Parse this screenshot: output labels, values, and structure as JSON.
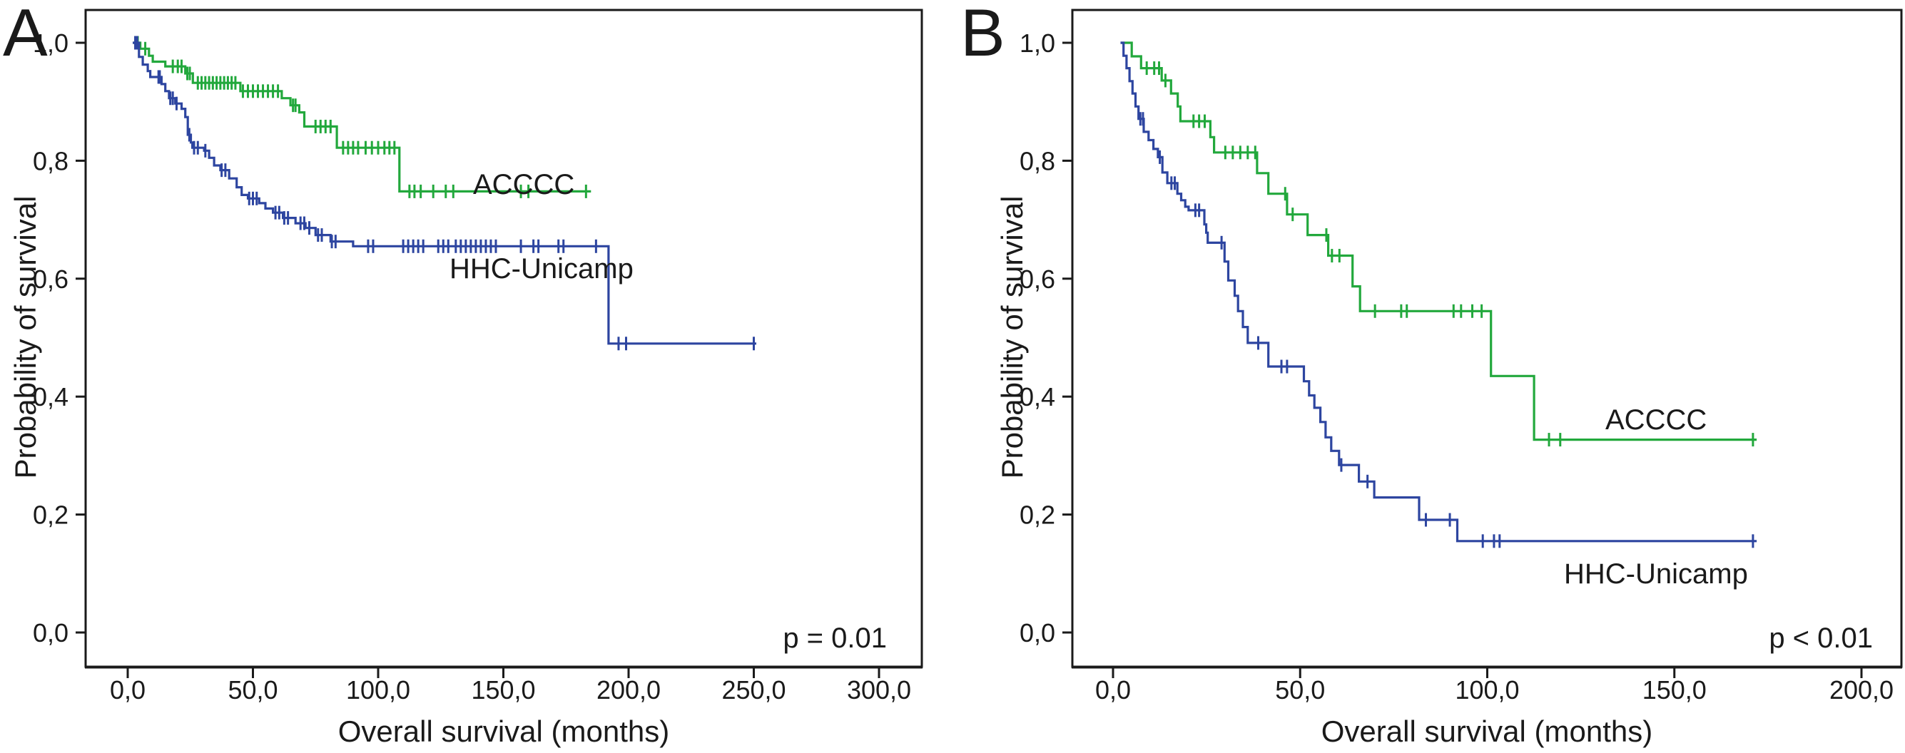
{
  "figure": {
    "background": "#ffffff",
    "ink_color": "#1a1a1a",
    "description": "Kaplan-Meier overall survival curves, two panels"
  },
  "chart_data": [
    {
      "type": "line",
      "subtype": "kaplan-meier-step",
      "panel_label": "A",
      "p_value_label": "p = 0.01",
      "legend_position": "inline-labels",
      "grid": false,
      "x_axis": {
        "title": "Overall survival (months)",
        "tick_labels": [
          "0,0",
          "50,0",
          "100,0",
          "150,0",
          "200,0",
          "250,0",
          "300,0"
        ],
        "tick_values": [
          0,
          50,
          100,
          150,
          200,
          250,
          300
        ],
        "range": [
          0,
          317
        ]
      },
      "y_axis": {
        "title": "Probability of survival",
        "tick_labels": [
          "1,0",
          "0,8",
          "0,6",
          "0,4",
          "0,2",
          "0,0"
        ],
        "tick_values": [
          1.0,
          0.8,
          0.6,
          0.4,
          0.2,
          0.0
        ],
        "range": [
          0,
          1
        ]
      },
      "series": [
        {
          "name": "ACCCC",
          "color": "#22a83c",
          "steps": [
            [
              2,
              1.0
            ],
            [
              5,
              0.99
            ],
            [
              8.5,
              0.978
            ],
            [
              10,
              0.968
            ],
            [
              15,
              0.96
            ],
            [
              23,
              0.948
            ],
            [
              26,
              0.932
            ],
            [
              45,
              0.918
            ],
            [
              61.5,
              0.906
            ],
            [
              65,
              0.894
            ],
            [
              68.5,
              0.882
            ],
            [
              70.5,
              0.858
            ],
            [
              83.5,
              0.822
            ],
            [
              108.5,
              0.748
            ],
            [
              185,
              0.748
            ]
          ],
          "censor_times": [
            4,
            7,
            18,
            20,
            21.5,
            23.8,
            24.8,
            28,
            29.5,
            31,
            32.5,
            34,
            35.5,
            37,
            38.5,
            40,
            41.5,
            43,
            46,
            48,
            50,
            52,
            54,
            56,
            58,
            60,
            66,
            67,
            75,
            77,
            79,
            81,
            86,
            88,
            90,
            92,
            95,
            97.5,
            100,
            102.5,
            104.5,
            106.5,
            112.5,
            114.5,
            117,
            122,
            127,
            130,
            157,
            160,
            183
          ]
        },
        {
          "name": "HHC-Unicamp",
          "color": "#2d45a0",
          "steps": [
            [
              2,
              1.0
            ],
            [
              4.5,
              0.976
            ],
            [
              6,
              0.963
            ],
            [
              8,
              0.952
            ],
            [
              9,
              0.942
            ],
            [
              13.5,
              0.93
            ],
            [
              15,
              0.918
            ],
            [
              16.5,
              0.906
            ],
            [
              19,
              0.897
            ],
            [
              21.5,
              0.888
            ],
            [
              23,
              0.874
            ],
            [
              24,
              0.844
            ],
            [
              25.2,
              0.831
            ],
            [
              25.8,
              0.822
            ],
            [
              30.5,
              0.817
            ],
            [
              32.5,
              0.805
            ],
            [
              34.5,
              0.792
            ],
            [
              37,
              0.784
            ],
            [
              40.5,
              0.77
            ],
            [
              43.5,
              0.755
            ],
            [
              45.5,
              0.742
            ],
            [
              48,
              0.736
            ],
            [
              52.5,
              0.728
            ],
            [
              55,
              0.719
            ],
            [
              58,
              0.712
            ],
            [
              62,
              0.703
            ],
            [
              67,
              0.694
            ],
            [
              71,
              0.686
            ],
            [
              75,
              0.674
            ],
            [
              81,
              0.663
            ],
            [
              90,
              0.655
            ],
            [
              192,
              0.49
            ],
            [
              251,
              0.49
            ]
          ],
          "censor_times": [
            3,
            3.8,
            12.3,
            12.8,
            17,
            18,
            19.5,
            24.6,
            26.5,
            28,
            31,
            37.5,
            39,
            48.5,
            50,
            51.5,
            59,
            60.5,
            62.5,
            64,
            69,
            70.5,
            72.5,
            76,
            77.5,
            81.5,
            83,
            96,
            98,
            110,
            112,
            114,
            116,
            118,
            124,
            126,
            128,
            131,
            133,
            135,
            137,
            139,
            141,
            143,
            145,
            147,
            157,
            162,
            164,
            172,
            174,
            187,
            196,
            199,
            250
          ]
        }
      ]
    },
    {
      "type": "line",
      "subtype": "kaplan-meier-step",
      "panel_label": "B",
      "p_value_label": "p < 0.01",
      "legend_position": "inline-labels",
      "grid": false,
      "x_axis": {
        "title": "Overall survival (months)",
        "tick_labels": [
          "0,0",
          "50,0",
          "100,0",
          "150,0",
          "200,0"
        ],
        "tick_values": [
          0,
          50,
          100,
          150,
          200
        ],
        "range": [
          0,
          210
        ]
      },
      "y_axis": {
        "title": "Probability of survival",
        "tick_labels": [
          "1,0",
          "0,8",
          "0,6",
          "0,4",
          "0,2",
          "0,0"
        ],
        "tick_values": [
          1.0,
          0.8,
          0.6,
          0.4,
          0.2,
          0.0
        ],
        "range": [
          0,
          1
        ]
      },
      "series": [
        {
          "name": "ACCCC",
          "color": "#22a83c",
          "steps": [
            [
              2,
              1.0
            ],
            [
              5,
              0.977
            ],
            [
              7.5,
              0.957
            ],
            [
              13,
              0.936
            ],
            [
              15.5,
              0.914
            ],
            [
              17.3,
              0.892
            ],
            [
              18,
              0.867
            ],
            [
              26,
              0.84
            ],
            [
              27,
              0.814
            ],
            [
              38.5,
              0.779
            ],
            [
              41.5,
              0.744
            ],
            [
              46.5,
              0.709
            ],
            [
              52,
              0.674
            ],
            [
              57.5,
              0.639
            ],
            [
              64,
              0.587
            ],
            [
              66,
              0.545
            ],
            [
              101,
              0.435
            ],
            [
              112.5,
              0.327
            ],
            [
              172,
              0.327
            ]
          ],
          "censor_times": [
            9,
            11,
            12.3,
            14,
            21.5,
            23,
            24.5,
            30,
            32,
            34,
            36,
            38,
            46,
            48,
            57,
            58.5,
            60.5,
            70,
            77,
            78.5,
            91,
            93,
            96,
            98.5,
            116.5,
            119.5,
            171
          ]
        },
        {
          "name": "HHC-Unicamp",
          "color": "#2d45a0",
          "steps": [
            [
              2,
              1.0
            ],
            [
              2.8,
              0.978
            ],
            [
              3.6,
              0.957
            ],
            [
              4.4,
              0.935
            ],
            [
              5.2,
              0.914
            ],
            [
              6,
              0.892
            ],
            [
              6.8,
              0.871
            ],
            [
              8.2,
              0.849
            ],
            [
              9.5,
              0.835
            ],
            [
              10.8,
              0.82
            ],
            [
              12,
              0.806
            ],
            [
              13.2,
              0.78
            ],
            [
              14.5,
              0.762
            ],
            [
              17.2,
              0.744
            ],
            [
              18.2,
              0.733
            ],
            [
              19.3,
              0.722
            ],
            [
              20.2,
              0.716
            ],
            [
              24.4,
              0.692
            ],
            [
              24.9,
              0.678
            ],
            [
              25.3,
              0.661
            ],
            [
              29.8,
              0.629
            ],
            [
              30.8,
              0.597
            ],
            [
              32.5,
              0.571
            ],
            [
              33.4,
              0.545
            ],
            [
              34.7,
              0.518
            ],
            [
              36,
              0.491
            ],
            [
              41.5,
              0.451
            ],
            [
              51,
              0.426
            ],
            [
              52.4,
              0.402
            ],
            [
              53.8,
              0.381
            ],
            [
              55.4,
              0.357
            ],
            [
              56.8,
              0.331
            ],
            [
              58.3,
              0.308
            ],
            [
              60.4,
              0.284
            ],
            [
              65.7,
              0.256
            ],
            [
              69.8,
              0.229
            ],
            [
              81.8,
              0.191
            ],
            [
              92,
              0.155
            ],
            [
              172,
              0.155
            ]
          ],
          "censor_times": [
            7.3,
            8,
            12.5,
            15.6,
            16.5,
            22,
            23,
            29,
            38.8,
            45,
            46.5,
            61,
            68,
            83.6,
            90,
            98.8,
            101.8,
            103.3,
            171
          ]
        }
      ]
    }
  ]
}
